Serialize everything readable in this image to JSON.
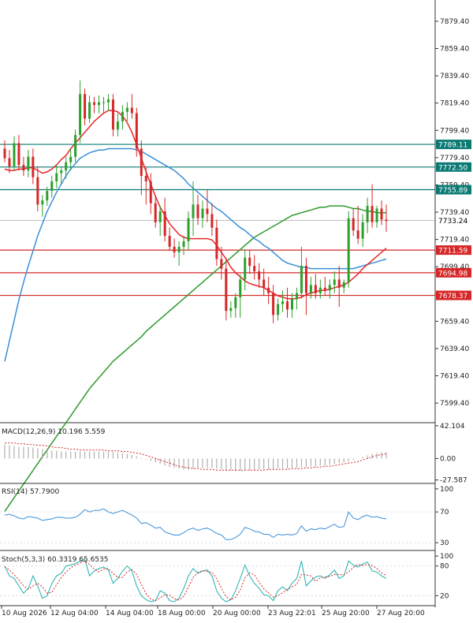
{
  "colors": {
    "background": "#ffffff",
    "axis": "#333333",
    "bull_candle": "#2ca02c",
    "bear_candle": "#d62728",
    "ma_fast": "#e8262a",
    "ma_mid": "#3a8fd9",
    "ma_slow": "#2e9a2e",
    "resistance": "#0b7a73",
    "support": "#d62728",
    "current": "#999999",
    "macd_hist": "#b0b0b0",
    "macd_signal": "#d62728",
    "rsi_line": "#3a8fd9",
    "stoch_main": "#20b0b0",
    "stoch_signal": "#d62728"
  },
  "chart_data": [
    {
      "type": "candlestick",
      "title": "",
      "ylim": [
        7585,
        7895
      ],
      "y_ticks": [
        "7879.40",
        "7859.40",
        "7839.40",
        "7819.40",
        "7799.40",
        "7779.40",
        "7759.40",
        "7739.40",
        "7719.40",
        "7699.40",
        "7679.40",
        "7659.40",
        "7639.40",
        "7619.40",
        "7599.40"
      ],
      "x_ticks": [
        "10 Aug 2026",
        "12 Aug 04:00",
        "14 Aug 04:00",
        "18 Aug 00:00",
        "20 Aug 00:00",
        "23 Aug 22:01",
        "25 Aug 20:00",
        "27 Aug 20:00"
      ],
      "levels": [
        {
          "value": 7789.11,
          "label": "7789.11",
          "kind": "resistance"
        },
        {
          "value": 7772.5,
          "label": "7772.50",
          "kind": "resistance"
        },
        {
          "value": 7755.89,
          "label": "7755.89",
          "kind": "resistance"
        },
        {
          "value": 7733.24,
          "label": "7733.24",
          "kind": "current"
        },
        {
          "value": 7711.59,
          "label": "7711.59",
          "kind": "support"
        },
        {
          "value": 7694.98,
          "label": "7694.98",
          "kind": "support"
        },
        {
          "value": 7678.37,
          "label": "7678.37",
          "kind": "support"
        }
      ],
      "candles": [
        [
          7786,
          7792,
          7776,
          7779
        ],
        [
          7779,
          7785,
          7768,
          7773
        ],
        [
          7773,
          7795,
          7770,
          7790
        ],
        [
          7790,
          7796,
          7770,
          7774
        ],
        [
          7774,
          7780,
          7766,
          7770
        ],
        [
          7770,
          7785,
          7765,
          7780
        ],
        [
          7780,
          7786,
          7760,
          7765
        ],
        [
          7765,
          7773,
          7740,
          7745
        ],
        [
          7745,
          7752,
          7736,
          7748
        ],
        [
          7748,
          7758,
          7744,
          7755
        ],
        [
          7755,
          7766,
          7750,
          7762
        ],
        [
          7762,
          7774,
          7757,
          7768
        ],
        [
          7768,
          7773,
          7760,
          7770
        ],
        [
          7770,
          7780,
          7764,
          7776
        ],
        [
          7776,
          7786,
          7770,
          7780
        ],
        [
          7780,
          7800,
          7776,
          7796
        ],
        [
          7796,
          7836,
          7790,
          7826
        ],
        [
          7826,
          7830,
          7803,
          7808
        ],
        [
          7808,
          7825,
          7805,
          7820
        ],
        [
          7820,
          7824,
          7812,
          7818
        ],
        [
          7818,
          7825,
          7812,
          7820
        ],
        [
          7820,
          7824,
          7812,
          7820
        ],
        [
          7820,
          7826,
          7814,
          7822
        ],
        [
          7822,
          7826,
          7795,
          7800
        ],
        [
          7800,
          7812,
          7795,
          7806
        ],
        [
          7806,
          7818,
          7800,
          7813
        ],
        [
          7813,
          7820,
          7806,
          7816
        ],
        [
          7816,
          7826,
          7808,
          7812
        ],
        [
          7812,
          7816,
          7780,
          7786
        ],
        [
          7786,
          7792,
          7752,
          7766
        ],
        [
          7766,
          7772,
          7745,
          7762
        ],
        [
          7762,
          7768,
          7738,
          7746
        ],
        [
          7746,
          7752,
          7728,
          7732
        ],
        [
          7732,
          7744,
          7722,
          7740
        ],
        [
          7740,
          7750,
          7718,
          7722
        ],
        [
          7722,
          7728,
          7711,
          7714
        ],
        [
          7714,
          7720,
          7706,
          7710
        ],
        [
          7710,
          7718,
          7700,
          7714
        ],
        [
          7714,
          7722,
          7708,
          7718
        ],
        [
          7718,
          7740,
          7712,
          7735
        ],
        [
          7735,
          7762,
          7722,
          7745
        ],
        [
          7745,
          7752,
          7730,
          7735
        ],
        [
          7735,
          7748,
          7728,
          7742
        ],
        [
          7742,
          7756,
          7732,
          7738
        ],
        [
          7738,
          7746,
          7722,
          7728
        ],
        [
          7728,
          7734,
          7700,
          7705
        ],
        [
          7705,
          7714,
          7690,
          7698
        ],
        [
          7698,
          7706,
          7660,
          7667
        ],
        [
          7667,
          7674,
          7662,
          7669
        ],
        [
          7669,
          7680,
          7662,
          7677
        ],
        [
          7677,
          7694,
          7662,
          7690
        ],
        [
          7690,
          7712,
          7682,
          7706
        ],
        [
          7706,
          7712,
          7694,
          7700
        ],
        [
          7700,
          7708,
          7690,
          7696
        ],
        [
          7696,
          7702,
          7684,
          7690
        ],
        [
          7690,
          7698,
          7678,
          7684
        ],
        [
          7684,
          7692,
          7672,
          7680
        ],
        [
          7680,
          7686,
          7658,
          7664
        ],
        [
          7664,
          7676,
          7660,
          7672
        ],
        [
          7672,
          7682,
          7666,
          7674
        ],
        [
          7674,
          7684,
          7662,
          7668
        ],
        [
          7668,
          7680,
          7662,
          7676
        ],
        [
          7676,
          7684,
          7668,
          7680
        ],
        [
          7680,
          7714,
          7676,
          7700
        ],
        [
          7700,
          7706,
          7664,
          7680
        ],
        [
          7680,
          7692,
          7676,
          7686
        ],
        [
          7686,
          7694,
          7676,
          7680
        ],
        [
          7680,
          7690,
          7676,
          7684
        ],
        [
          7684,
          7692,
          7678,
          7682
        ],
        [
          7682,
          7690,
          7676,
          7686
        ],
        [
          7686,
          7696,
          7680,
          7690
        ],
        [
          7690,
          7700,
          7670,
          7684
        ],
        [
          7684,
          7690,
          7680,
          7688
        ],
        [
          7688,
          7740,
          7684,
          7735
        ],
        [
          7735,
          7742,
          7722,
          7726
        ],
        [
          7726,
          7744,
          7716,
          7720
        ],
        [
          7720,
          7738,
          7714,
          7732
        ],
        [
          7732,
          7750,
          7724,
          7744
        ],
        [
          7744,
          7760,
          7728,
          7732
        ],
        [
          7732,
          7744,
          7728,
          7742
        ],
        [
          7742,
          7748,
          7730,
          7734
        ],
        [
          7734,
          7745,
          7725,
          7733
        ]
      ],
      "ma_fast": [
        7771,
        7770,
        7770,
        7771,
        7771,
        7772,
        7772,
        7770,
        7768,
        7769,
        7771,
        7774,
        7778,
        7781,
        7786,
        7790,
        7794,
        7798,
        7802,
        7806,
        7809,
        7812,
        7814,
        7814,
        7813,
        7810,
        7805,
        7798,
        7789,
        7779,
        7769,
        7760,
        7751,
        7743,
        7737,
        7731,
        7727,
        7723,
        7721,
        7720,
        7720,
        7720,
        7720,
        7720,
        7719,
        7715,
        7710,
        7705,
        7699,
        7695,
        7692,
        7689,
        7687,
        7686,
        7685,
        7684,
        7682,
        7680,
        7678,
        7677,
        7676,
        7676,
        7676,
        7677,
        7679,
        7680,
        7681,
        7682,
        7682,
        7683,
        7684,
        7685,
        7686,
        7688,
        7691,
        7694,
        7698,
        7701,
        7704,
        7707,
        7710,
        7713
      ],
      "ma_mid": [
        7630,
        7645,
        7660,
        7675,
        7688,
        7700,
        7711,
        7722,
        7731,
        7740,
        7747,
        7754,
        7760,
        7766,
        7771,
        7775,
        7779,
        7781,
        7783,
        7784,
        7785,
        7785,
        7786,
        7786,
        7786,
        7786,
        7786,
        7786,
        7785,
        7784,
        7782,
        7780,
        7778,
        7776,
        7774,
        7772,
        7770,
        7767,
        7764,
        7760,
        7757,
        7754,
        7751,
        7748,
        7745,
        7742,
        7740,
        7737,
        7734,
        7731,
        7728,
        7726,
        7723,
        7720,
        7718,
        7715,
        7713,
        7710,
        7707,
        7704,
        7702,
        7701,
        7700,
        7699,
        7699,
        7698,
        7698,
        7698,
        7698,
        7698,
        7698,
        7698,
        7698,
        7698,
        7698,
        7699,
        7700,
        7701,
        7702,
        7703,
        7704,
        7705
      ],
      "ma_slow": [
        7520,
        7525,
        7530,
        7535,
        7540,
        7545,
        7550,
        7555,
        7560,
        7565,
        7570,
        7575,
        7580,
        7585,
        7590,
        7595,
        7600,
        7605,
        7610,
        7614,
        7618,
        7622,
        7626,
        7630,
        7633,
        7636,
        7639,
        7642,
        7645,
        7648,
        7652,
        7655,
        7658,
        7661,
        7664,
        7667,
        7670,
        7673,
        7676,
        7679,
        7682,
        7685,
        7688,
        7691,
        7694,
        7697,
        7700,
        7703,
        7706,
        7709,
        7712,
        7715,
        7718,
        7721,
        7723,
        7725,
        7727,
        7729,
        7731,
        7733,
        7735,
        7737,
        7738,
        7739,
        7740,
        7741,
        7742,
        7743,
        7743,
        7744,
        7744,
        7744,
        7744,
        7743,
        7742,
        7742,
        7741,
        7740,
        7740,
        7739,
        7739,
        7739
      ]
    },
    {
      "type": "bar",
      "indicator_label": "MACD(12,26,9) 10.196 5.559",
      "ylim": [
        -32,
        44
      ],
      "y_ticks": [
        "42.104",
        "0.00",
        "-27.587"
      ],
      "histogram": [
        18,
        17,
        16,
        15,
        15,
        15,
        14,
        13,
        12,
        11,
        10,
        10,
        9,
        9,
        9,
        9,
        9,
        9,
        9,
        9,
        9,
        9,
        9,
        9,
        8,
        7,
        6,
        5,
        3,
        1,
        -1,
        -3,
        -5,
        -7,
        -9,
        -11,
        -12,
        -13,
        -14,
        -14,
        -13,
        -12,
        -12,
        -12,
        -12,
        -13,
        -14,
        -15,
        -15,
        -16,
        -16,
        -15,
        -15,
        -15,
        -14,
        -14,
        -14,
        -14,
        -13,
        -13,
        -13,
        -12,
        -12,
        -11,
        -11,
        -10,
        -10,
        -9,
        -9,
        -8,
        -7,
        -6,
        -5,
        -4,
        -2,
        0,
        2,
        4,
        6,
        7,
        8,
        8
      ],
      "signal": [
        20,
        20,
        20,
        19,
        19,
        18,
        18,
        17,
        17,
        16,
        15,
        14,
        14,
        13,
        12,
        12,
        11,
        11,
        11,
        11,
        11,
        11,
        10,
        10,
        10,
        9,
        9,
        8,
        7,
        6,
        4,
        2,
        0,
        -2,
        -4,
        -6,
        -8,
        -10,
        -11,
        -12,
        -13,
        -13,
        -14,
        -14,
        -14,
        -15,
        -15,
        -15,
        -15,
        -15,
        -15,
        -15,
        -15,
        -15,
        -15,
        -15,
        -14,
        -14,
        -14,
        -14,
        -14,
        -13,
        -13,
        -13,
        -12,
        -12,
        -11,
        -11,
        -10,
        -10,
        -9,
        -8,
        -7,
        -6,
        -5,
        -4,
        -2,
        0,
        2,
        4,
        5,
        6
      ]
    },
    {
      "type": "line",
      "indicator_label": "RSI(14) 57.7900",
      "ylim": [
        20,
        105
      ],
      "y_ticks": [
        "100",
        "70",
        "30"
      ],
      "values": [
        66,
        67,
        65,
        62,
        61,
        64,
        63,
        62,
        59,
        60,
        61,
        63,
        63,
        62,
        62,
        63,
        67,
        73,
        70,
        72,
        72,
        74,
        70,
        68,
        70,
        72,
        69,
        66,
        62,
        55,
        56,
        53,
        49,
        50,
        44,
        42,
        40,
        40,
        43,
        47,
        49,
        46,
        48,
        49,
        46,
        42,
        40,
        34,
        34,
        37,
        41,
        50,
        48,
        45,
        44,
        41,
        41,
        37,
        41,
        40,
        41,
        40,
        42,
        52,
        45,
        48,
        47,
        49,
        48,
        51,
        54,
        50,
        51,
        70,
        62,
        60,
        64,
        66,
        63,
        64,
        62,
        61
      ]
    },
    {
      "type": "line",
      "indicator_label": "Stoch(5,3,3) 60.3319 65.6535",
      "ylim": [
        0,
        105
      ],
      "y_ticks": [
        "100",
        "80",
        "20"
      ],
      "main": [
        80,
        60,
        55,
        40,
        25,
        35,
        60,
        40,
        15,
        20,
        45,
        60,
        65,
        80,
        82,
        85,
        90,
        93,
        60,
        70,
        75,
        78,
        72,
        45,
        55,
        70,
        80,
        70,
        40,
        20,
        12,
        8,
        10,
        30,
        25,
        10,
        8,
        15,
        35,
        60,
        75,
        65,
        70,
        72,
        60,
        30,
        15,
        8,
        12,
        30,
        55,
        82,
        60,
        45,
        35,
        22,
        20,
        10,
        30,
        38,
        30,
        45,
        55,
        90,
        40,
        50,
        58,
        60,
        55,
        62,
        72,
        55,
        60,
        90,
        82,
        78,
        84,
        88,
        70,
        68,
        60,
        55
      ],
      "signal": [
        78,
        72,
        62,
        52,
        40,
        33,
        40,
        45,
        38,
        25,
        27,
        42,
        57,
        68,
        76,
        82,
        86,
        90,
        83,
        74,
        68,
        74,
        75,
        65,
        57,
        57,
        68,
        73,
        63,
        43,
        24,
        13,
        10,
        16,
        22,
        21,
        14,
        11,
        19,
        37,
        57,
        67,
        70,
        69,
        67,
        54,
        35,
        18,
        12,
        17,
        32,
        56,
        66,
        62,
        47,
        34,
        26,
        17,
        20,
        26,
        33,
        38,
        43,
        63,
        62,
        60,
        49,
        56,
        58,
        59,
        63,
        63,
        62,
        68,
        77,
        83,
        81,
        83,
        81,
        75,
        66,
        61
      ]
    }
  ]
}
